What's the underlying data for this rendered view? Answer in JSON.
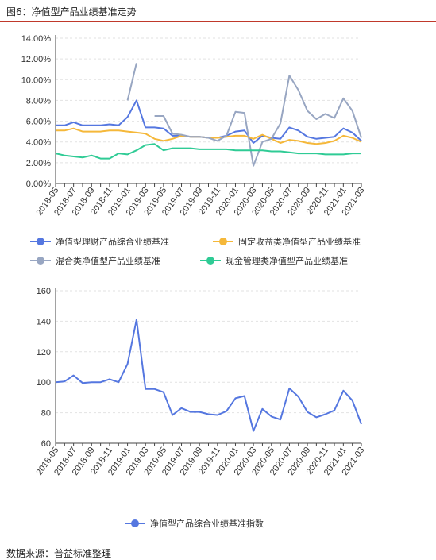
{
  "figure_title": "图6：净值型产品业绩基准走势",
  "source_text": "数据来源：普益标准整理",
  "colors": {
    "s1": "#5577e0",
    "s2": "#f5b83a",
    "s3": "#98a6c2",
    "s4": "#2fcb95",
    "grid": "#e2e2e2",
    "axis": "#444"
  },
  "x_labels": [
    "2018-05",
    "2018-07",
    "2018-09",
    "2018-11",
    "2019-01",
    "2019-03",
    "2019-05",
    "2019-07",
    "2019-09",
    "2019-11",
    "2020-01",
    "2020-03",
    "2020-05",
    "2020-07",
    "2020-09",
    "2020-11",
    "2021-01",
    "2021-03"
  ],
  "chart_data": [
    {
      "type": "line",
      "categories": [
        "2018-05",
        "2018-06",
        "2018-07",
        "2018-08",
        "2018-09",
        "2018-10",
        "2018-11",
        "2018-12",
        "2019-01",
        "2019-02",
        "2019-03",
        "2019-04",
        "2019-05",
        "2019-06",
        "2019-07",
        "2019-08",
        "2019-09",
        "2019-10",
        "2019-11",
        "2019-12",
        "2020-01",
        "2020-02",
        "2020-03",
        "2020-04",
        "2020-05",
        "2020-06",
        "2020-07",
        "2020-08",
        "2020-09",
        "2020-10",
        "2020-11",
        "2020-12",
        "2021-01",
        "2021-02",
        "2021-03"
      ],
      "ylim": [
        0,
        14
      ],
      "yticks": [
        "0.00%",
        "2.00%",
        "4.00%",
        "6.00%",
        "8.00%",
        "10.00%",
        "12.00%",
        "14.00%"
      ],
      "series": [
        {
          "name": "净值型理财产品综合业绩基准",
          "color_key": "s1",
          "values": [
            5.6,
            5.6,
            5.9,
            5.6,
            5.6,
            5.6,
            5.7,
            5.6,
            6.4,
            8.0,
            5.4,
            5.4,
            5.3,
            4.6,
            4.6,
            4.5,
            4.5,
            4.4,
            4.4,
            4.6,
            5.0,
            5.1,
            3.9,
            4.6,
            4.4,
            4.3,
            5.4,
            5.1,
            4.5,
            4.3,
            4.4,
            4.5,
            5.3,
            4.9,
            4.1
          ]
        },
        {
          "name": "固定收益类净值型产品业绩基准",
          "color_key": "s2",
          "values": [
            5.1,
            5.1,
            5.3,
            5.0,
            5.0,
            5.0,
            5.1,
            5.1,
            5.0,
            4.9,
            4.8,
            4.3,
            4.1,
            4.3,
            4.6,
            4.5,
            4.5,
            4.4,
            4.4,
            4.5,
            4.6,
            4.6,
            4.3,
            4.7,
            4.3,
            3.9,
            4.2,
            4.1,
            3.9,
            3.8,
            3.9,
            4.1,
            4.6,
            4.4,
            4.0
          ]
        },
        {
          "name": "混合类净值型产品业绩基准",
          "color_key": "s3",
          "values": [
            null,
            null,
            null,
            null,
            null,
            null,
            null,
            null,
            8.0,
            11.6,
            null,
            6.5,
            6.5,
            4.8,
            4.7,
            4.5,
            4.5,
            4.4,
            4.1,
            4.6,
            6.9,
            6.8,
            1.7,
            4.0,
            4.3,
            5.8,
            10.4,
            9.0,
            7.0,
            6.2,
            6.7,
            6.3,
            8.2,
            7.0,
            4.4
          ]
        },
        {
          "name": "现金管理类净值型产品业绩基准",
          "color_key": "s4",
          "values": [
            2.9,
            2.7,
            2.6,
            2.5,
            2.7,
            2.4,
            2.4,
            2.9,
            2.8,
            3.2,
            3.7,
            3.8,
            3.2,
            3.4,
            3.4,
            3.4,
            3.3,
            3.3,
            3.3,
            3.3,
            3.2,
            3.2,
            3.2,
            3.2,
            3.1,
            3.1,
            3.0,
            2.9,
            2.9,
            2.9,
            2.8,
            2.8,
            2.8,
            2.9,
            2.9
          ]
        }
      ]
    },
    {
      "type": "line",
      "categories": [
        "2018-05",
        "2018-06",
        "2018-07",
        "2018-08",
        "2018-09",
        "2018-10",
        "2018-11",
        "2018-12",
        "2019-01",
        "2019-02",
        "2019-03",
        "2019-04",
        "2019-05",
        "2019-06",
        "2019-07",
        "2019-08",
        "2019-09",
        "2019-10",
        "2019-11",
        "2019-12",
        "2020-01",
        "2020-02",
        "2020-03",
        "2020-04",
        "2020-05",
        "2020-06",
        "2020-07",
        "2020-08",
        "2020-09",
        "2020-10",
        "2020-11",
        "2020-12",
        "2021-01",
        "2021-02",
        "2021-03"
      ],
      "ylim": [
        60,
        160
      ],
      "yticks": [
        "60",
        "80",
        "100",
        "120",
        "140",
        "160"
      ],
      "series": [
        {
          "name": "净值型产品综合业绩基准指数",
          "color_key": "s1",
          "values": [
            100,
            100.5,
            104.5,
            99.5,
            100,
            100,
            102,
            100,
            112,
            141,
            95.5,
            95.5,
            93.5,
            78.5,
            83,
            80.5,
            80.5,
            79,
            78.5,
            81,
            89.5,
            91,
            68,
            82.5,
            77.5,
            75.5,
            96,
            90.5,
            80.5,
            77,
            79,
            81.5,
            94.5,
            88,
            72.5
          ]
        }
      ]
    }
  ]
}
